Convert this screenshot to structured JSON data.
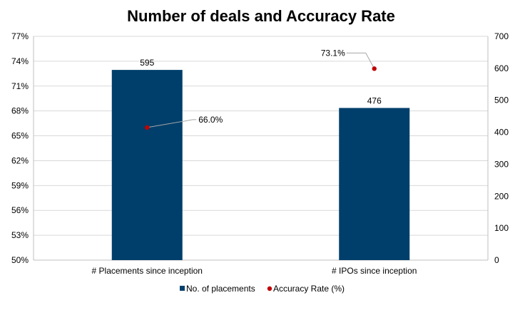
{
  "chart_data": {
    "type": "bar",
    "title": "Number of deals and Accuracy Rate",
    "categories": [
      "# Placements since inception",
      "# IPOs since inception"
    ],
    "series": [
      {
        "name": "No. of placements",
        "type": "bar",
        "axis": "secondary",
        "values": [
          595,
          476
        ],
        "labels": [
          "595",
          "476"
        ],
        "color": "#003f6b"
      },
      {
        "name": "Accuracy Rate (%)",
        "type": "scatter",
        "axis": "primary",
        "values": [
          0.66,
          0.731
        ],
        "labels": [
          "66.0%",
          "73.1%"
        ],
        "color": "#c00000"
      }
    ],
    "primary_axis": {
      "ylim": [
        0.5,
        0.77
      ],
      "ticks": [
        0.5,
        0.53,
        0.56,
        0.59,
        0.62,
        0.65,
        0.68,
        0.71,
        0.74,
        0.77
      ],
      "tick_labels": [
        "50%",
        "53%",
        "56%",
        "59%",
        "62%",
        "65%",
        "68%",
        "71%",
        "74%",
        "77%"
      ]
    },
    "secondary_axis": {
      "ylim": [
        0,
        700
      ],
      "ticks": [
        0,
        100,
        200,
        300,
        400,
        500,
        600,
        700
      ],
      "tick_labels": [
        "0",
        "100",
        "200",
        "300",
        "400",
        "500",
        "600",
        "700"
      ]
    },
    "grid": true,
    "legend_position": "bottom"
  }
}
